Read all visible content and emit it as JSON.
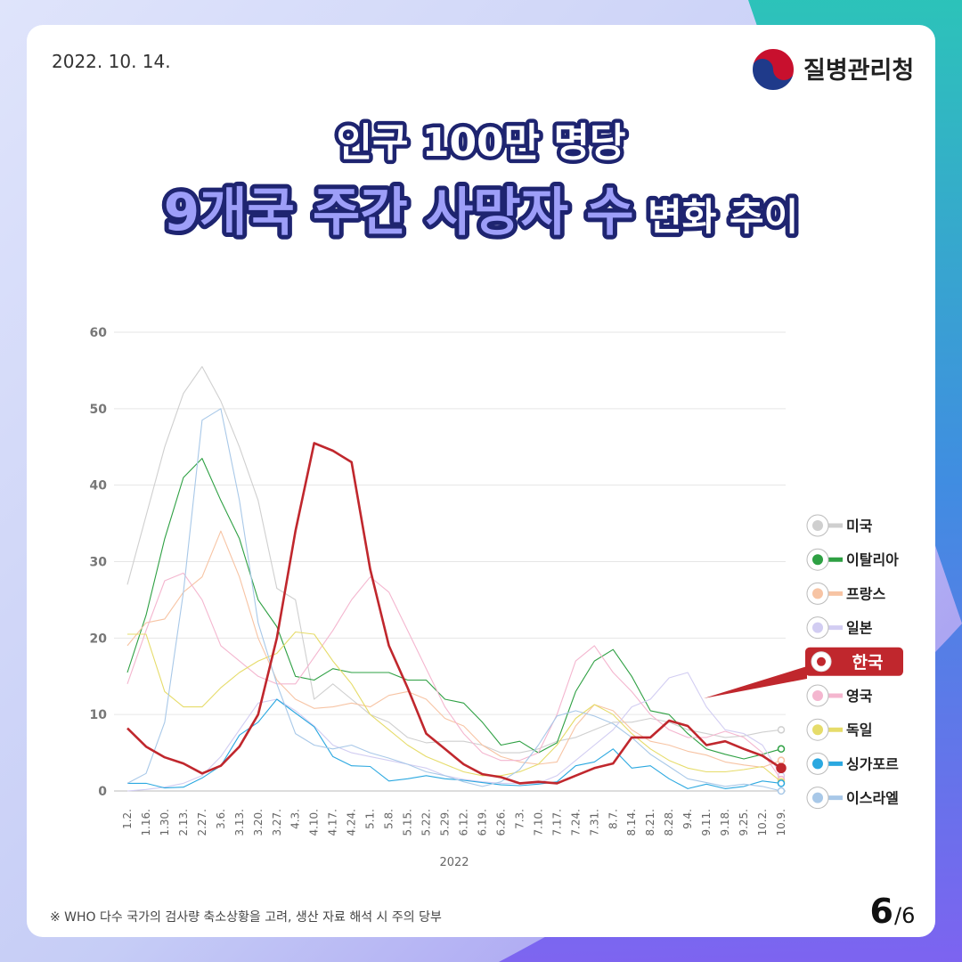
{
  "date": "2022. 10. 14.",
  "logo": "질병관리청",
  "title": {
    "line1": "인구 100만 명당",
    "line2_emphasis": "9개국 주간 사망자 수",
    "line2_rest": "변화 추이"
  },
  "chart_data": {
    "type": "line",
    "xlabel": "2022",
    "categories": [
      "1.2.",
      "1.16.",
      "1.30.",
      "2.13.",
      "2.27.",
      "3.6.",
      "3.13.",
      "3.20.",
      "3.27.",
      "4.3.",
      "4.10.",
      "4.17.",
      "4.24.",
      "5.1.",
      "5.8.",
      "5.15.",
      "5.22.",
      "5.29.",
      "6.12.",
      "6.19.",
      "6.26.",
      "7.3.",
      "7.10.",
      "7.17.",
      "7.24.",
      "7.31.",
      "8.7.",
      "8.14.",
      "8.21.",
      "8.28.",
      "9.4.",
      "9.11.",
      "9.18.",
      "9.25.",
      "10.2.",
      "10.9."
    ],
    "ylim": [
      0,
      60
    ],
    "yticks": [
      0,
      10,
      20,
      30,
      40,
      50,
      60
    ],
    "grid": true,
    "series": [
      {
        "name": "미국",
        "color": "#cfcfcf",
        "values": [
          27,
          36,
          45,
          52,
          55.5,
          51,
          45,
          38,
          26.5,
          25,
          12,
          14,
          12,
          10,
          9,
          7,
          6.3,
          6.5,
          6.5,
          6,
          5,
          5,
          5.5,
          6.5,
          7,
          8,
          9,
          9,
          9.5,
          9,
          8,
          7.5,
          7,
          7.2,
          7.7,
          8
        ]
      },
      {
        "name": "이탈리아",
        "color": "#2ea043",
        "values": [
          15.5,
          23,
          33,
          41,
          43.5,
          38,
          33,
          25,
          21.5,
          15,
          14.5,
          16,
          15.5,
          15.5,
          15.5,
          14.5,
          14.5,
          12,
          11.5,
          9,
          6,
          6.5,
          5,
          6.3,
          13,
          17,
          18.5,
          15,
          10.5,
          10,
          7.5,
          5.5,
          4.8,
          4.2,
          4.8,
          5.5
        ]
      },
      {
        "name": "프랑스",
        "color": "#f7c4a4",
        "values": [
          19,
          22,
          22.5,
          26,
          28,
          34,
          28,
          20,
          14.5,
          12,
          10.8,
          11,
          11.5,
          11,
          12.5,
          13,
          12,
          9.5,
          8.5,
          6,
          4.5,
          3.8,
          3.5,
          3.8,
          8.5,
          11.3,
          10.5,
          8,
          6.5,
          6,
          5.2,
          4.7,
          3.8,
          3.4,
          3.1,
          4
        ]
      },
      {
        "name": "일본",
        "color": "#d2cdf2",
        "values": [
          0,
          0.2,
          0.5,
          1,
          2,
          4.5,
          8,
          11.5,
          12,
          10.5,
          8.5,
          6,
          5,
          4.5,
          4,
          3.5,
          3,
          2,
          1.5,
          1.2,
          1,
          1,
          1,
          2,
          4,
          6,
          8,
          11,
          12,
          14.8,
          15.5,
          11,
          8,
          7.5,
          6,
          2
        ]
      },
      {
        "name": "한국",
        "color": "#c0272d",
        "highlight": true,
        "values": [
          8.2,
          5.8,
          4.4,
          3.6,
          2.3,
          3.3,
          5.8,
          10,
          20,
          34,
          45.5,
          44.5,
          43,
          29,
          19,
          13.5,
          7.5,
          5.5,
          3.5,
          2.2,
          1.8,
          1,
          1.2,
          1,
          2,
          3,
          3.6,
          7,
          7,
          9.2,
          8.5,
          6,
          6.5,
          5.5,
          4.6,
          3
        ]
      },
      {
        "name": "영국",
        "color": "#f4b6cf",
        "values": [
          14,
          21,
          27.5,
          28.5,
          25,
          19,
          17,
          15,
          14,
          14,
          17.5,
          21,
          25,
          28,
          26,
          21,
          16,
          11,
          7.5,
          5,
          4,
          4,
          5,
          10,
          17,
          19,
          15.5,
          13,
          10,
          8,
          7,
          7,
          7.8,
          7,
          5,
          1.5
        ]
      },
      {
        "name": "독일",
        "color": "#e6dc6a",
        "values": [
          20.5,
          20.5,
          13,
          11,
          11,
          13.5,
          15.5,
          17,
          18,
          20.8,
          20.5,
          17,
          14,
          10,
          8,
          6,
          4.5,
          3.5,
          2.5,
          2,
          2,
          2.5,
          3.5,
          6,
          9.5,
          11.3,
          10,
          7.5,
          5.5,
          4,
          3,
          2.5,
          2.5,
          2.8,
          3.2,
          1.2
        ]
      },
      {
        "name": "싱가포르",
        "color": "#2ba8e0",
        "values": [
          1,
          1,
          0.4,
          0.5,
          1.7,
          3.3,
          7.3,
          9,
          12,
          10.2,
          8.4,
          4.5,
          3.3,
          3.2,
          1.3,
          1.6,
          2,
          1.6,
          1.4,
          1.1,
          0.8,
          0.7,
          0.9,
          1.2,
          3.3,
          3.8,
          5.5,
          3,
          3.3,
          1.6,
          0.3,
          0.9,
          0.3,
          0.6,
          1.3,
          1
        ]
      },
      {
        "name": "이스라엘",
        "color": "#a8c8e8",
        "values": [
          1,
          2.3,
          9,
          26,
          48.5,
          50,
          38,
          22,
          14,
          7.5,
          6,
          5.5,
          6,
          5,
          4.3,
          3.5,
          2.5,
          2,
          1.2,
          0.6,
          1.2,
          2.8,
          6,
          9.8,
          10.5,
          9.8,
          8.8,
          7,
          4.8,
          3.2,
          1.6,
          1.1,
          0.6,
          0.9,
          0.6,
          0
        ]
      }
    ]
  },
  "footnote": "※ WHO 다수 국가의 검사량 축소상황을 고려, 생산 자료 해석 시 주의 당부",
  "page": {
    "current": "6",
    "total": "/6"
  }
}
